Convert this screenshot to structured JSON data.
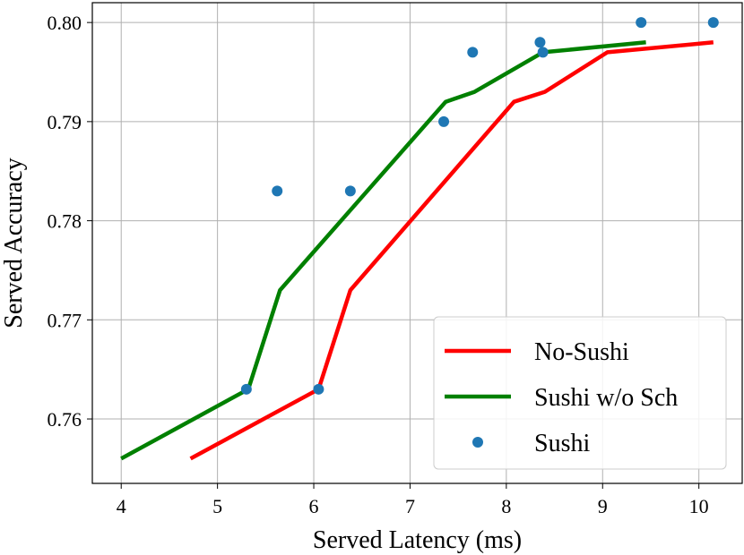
{
  "chart_data": {
    "type": "line",
    "xlabel": "Served Latency (ms)",
    "ylabel": "Served Accuracy",
    "xlim": [
      3.7,
      10.45
    ],
    "ylim": [
      0.7535,
      0.802
    ],
    "xticks": [
      4,
      5,
      6,
      7,
      8,
      9,
      10
    ],
    "xtick_labels": [
      "4",
      "5",
      "6",
      "7",
      "8",
      "9",
      "10"
    ],
    "yticks": [
      0.76,
      0.77,
      0.78,
      0.79,
      0.8
    ],
    "ytick_labels": [
      "0.76",
      "0.77",
      "0.78",
      "0.79",
      "0.80"
    ],
    "grid": true,
    "legend_position": "bottom-right",
    "series": [
      {
        "name": "No-Sushi",
        "kind": "line",
        "color": "#ff0000",
        "x": [
          4.72,
          6.05,
          6.38,
          8.08,
          8.4,
          9.05,
          10.15
        ],
        "y": [
          0.756,
          0.763,
          0.773,
          0.792,
          0.793,
          0.797,
          0.798
        ]
      },
      {
        "name": "Sushi w/o Sch",
        "kind": "line",
        "color": "#008000",
        "x": [
          4.0,
          5.32,
          5.65,
          7.37,
          7.67,
          8.38,
          9.45
        ],
        "y": [
          0.756,
          0.763,
          0.773,
          0.792,
          0.793,
          0.797,
          0.798
        ]
      },
      {
        "name": "Sushi",
        "kind": "scatter",
        "color": "#1f77b4",
        "x": [
          5.3,
          5.62,
          6.05,
          6.38,
          7.35,
          7.65,
          8.35,
          8.38,
          9.4,
          10.15
        ],
        "y": [
          0.763,
          0.783,
          0.763,
          0.783,
          0.79,
          0.797,
          0.798,
          0.797,
          0.8,
          0.8
        ]
      }
    ]
  }
}
